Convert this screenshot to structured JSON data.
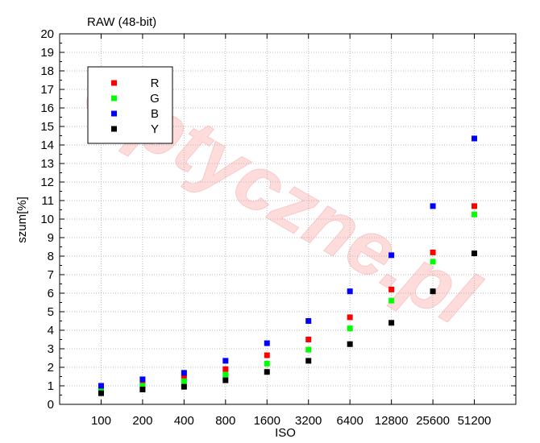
{
  "watermark": "Optyczne.pl",
  "chart_data": {
    "type": "scatter",
    "title": "RAW (48-bit)",
    "xlabel": "ISO",
    "ylabel": "szum[%]",
    "categories": [
      "100",
      "200",
      "400",
      "800",
      "1600",
      "3200",
      "6400",
      "12800",
      "25600",
      "51200"
    ],
    "ylim": [
      0,
      20
    ],
    "yticks": [
      0,
      1,
      2,
      3,
      4,
      5,
      6,
      7,
      8,
      9,
      10,
      11,
      12,
      13,
      14,
      15,
      16,
      17,
      18,
      19,
      20
    ],
    "grid": true,
    "legend_position": "top-left",
    "series": [
      {
        "name": "R",
        "color": "#ff0000",
        "values": [
          0.85,
          1.1,
          1.45,
          1.9,
          2.65,
          3.5,
          4.7,
          6.2,
          8.2,
          10.7
        ]
      },
      {
        "name": "G",
        "color": "#00ff00",
        "values": [
          0.75,
          1.0,
          1.25,
          1.6,
          2.2,
          2.95,
          4.1,
          5.6,
          7.7,
          10.25
        ]
      },
      {
        "name": "B",
        "color": "#0000ff",
        "values": [
          1.0,
          1.35,
          1.7,
          2.35,
          3.3,
          4.5,
          6.1,
          8.05,
          10.7,
          14.35
        ]
      },
      {
        "name": "Y",
        "color": "#000000",
        "values": [
          0.6,
          0.8,
          0.95,
          1.3,
          1.75,
          2.35,
          3.25,
          4.4,
          6.1,
          8.15
        ]
      }
    ]
  }
}
